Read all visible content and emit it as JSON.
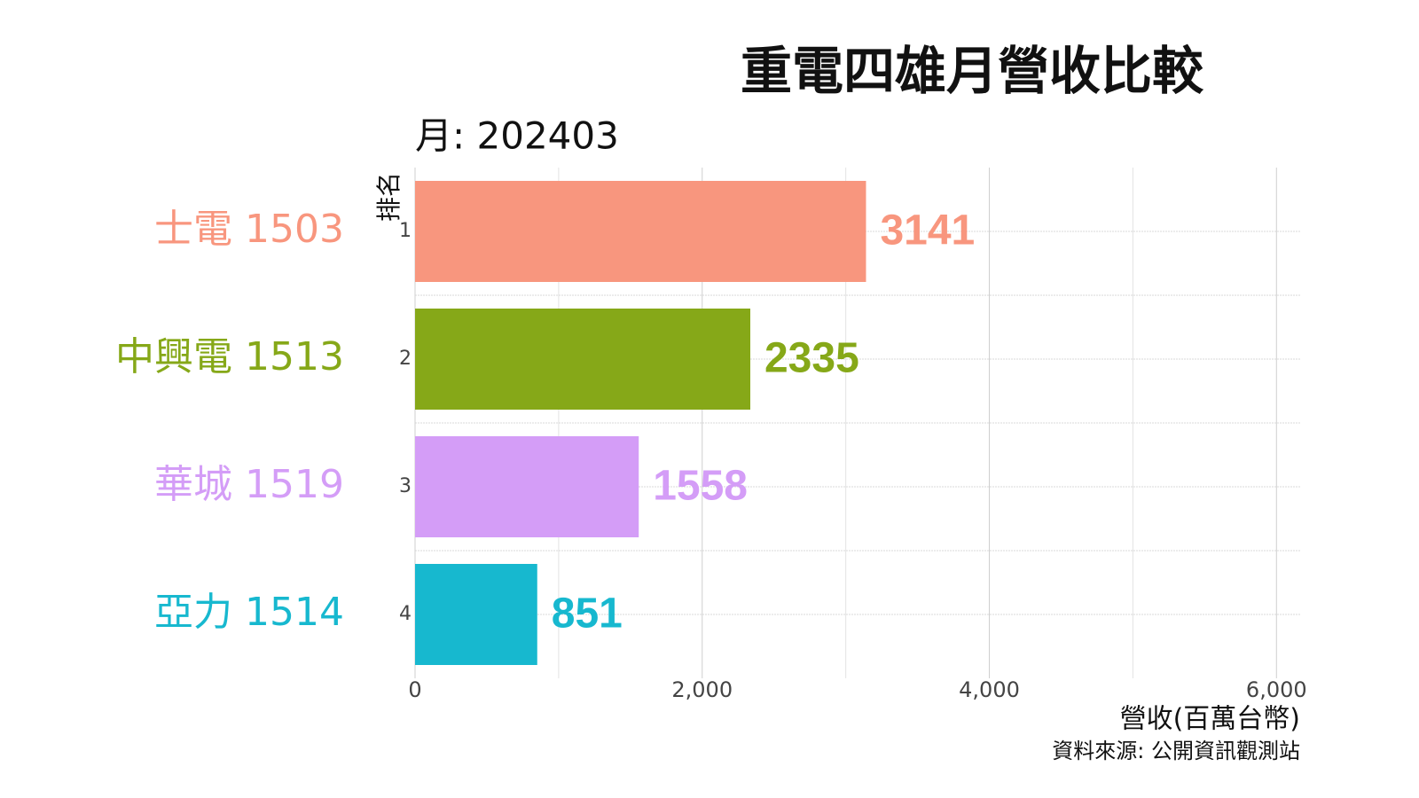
{
  "chart_data": {
    "type": "bar",
    "orientation": "horizontal",
    "title": "重電四雄月營收比較",
    "subtitle": "月: 202403",
    "y_label": "排名",
    "x_label": "營收(百萬台幣)",
    "caption": "資料來源: 公開資訊觀測站",
    "categories": [
      "士電 1503",
      "中興電 1513",
      "華城 1519",
      "亞力 1514"
    ],
    "ranks": [
      1,
      2,
      3,
      4
    ],
    "values": [
      3141,
      2335,
      1558,
      851
    ],
    "colors": [
      "#f8967e",
      "#86a818",
      "#d49df7",
      "#17b8cf"
    ],
    "xlim": [
      0,
      6165
    ],
    "xticks": [
      0,
      {
        "value": 2000,
        "label": "2,000"
      },
      {
        "value": 4000,
        "label": "4,000"
      },
      {
        "value": 6000,
        "label": "6,000"
      }
    ],
    "x_minor_grid": [
      1000,
      3000,
      5000
    ],
    "grid": true
  }
}
